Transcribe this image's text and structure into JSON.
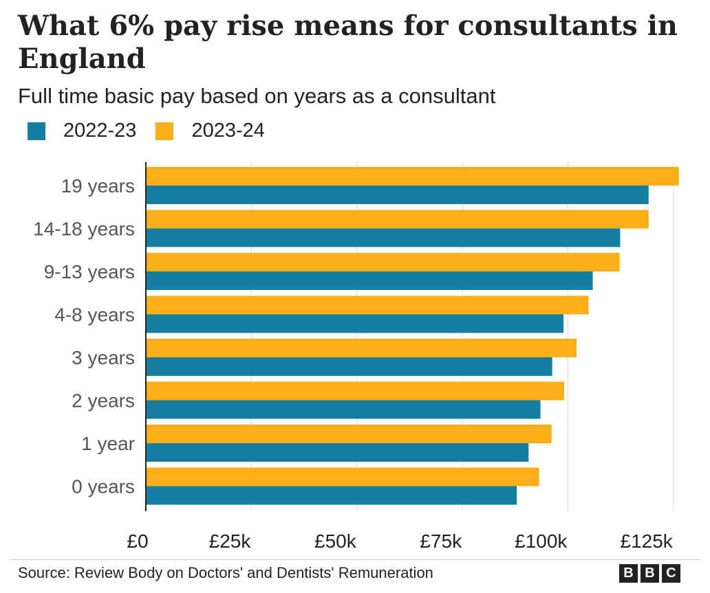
{
  "chart_data": {
    "type": "bar",
    "orientation": "horizontal",
    "title": "What 6% pay rise means for consultants in England",
    "subtitle": "Full time basic pay based on years as a consultant",
    "categories": [
      "19 years",
      "14-18 years",
      "9-13 years",
      "4-8 years",
      "3 years",
      "2 years",
      "1 year",
      "0 years"
    ],
    "series": [
      {
        "name": "2023-24",
        "color": "#fbae17",
        "values": [
          126281,
          119134,
          112245,
          104900,
          102060,
          99110,
          96138,
          93180
        ]
      },
      {
        "name": "2022-23",
        "color": "#1380a1",
        "values": [
          119133,
          112391,
          105895,
          98963,
          96283,
          93502,
          90695,
          87904
        ]
      }
    ],
    "x_ticks": [
      {
        "value": 0,
        "label": "£0"
      },
      {
        "value": 25000,
        "label": "£25k"
      },
      {
        "value": 50000,
        "label": "£50k"
      },
      {
        "value": 75000,
        "label": "£75k"
      },
      {
        "value": 100000,
        "label": "£100k"
      },
      {
        "value": 125000,
        "label": "£125k"
      }
    ],
    "xlim": [
      0,
      126500
    ],
    "grid": true,
    "legend_position": "top-left",
    "legend_order": [
      "2022-23",
      "2023-24"
    ]
  },
  "footer": {
    "source": "Source: Review Body on Doctors' and Dentists' Remuneration",
    "logo_letters": [
      "B",
      "B",
      "C"
    ]
  }
}
